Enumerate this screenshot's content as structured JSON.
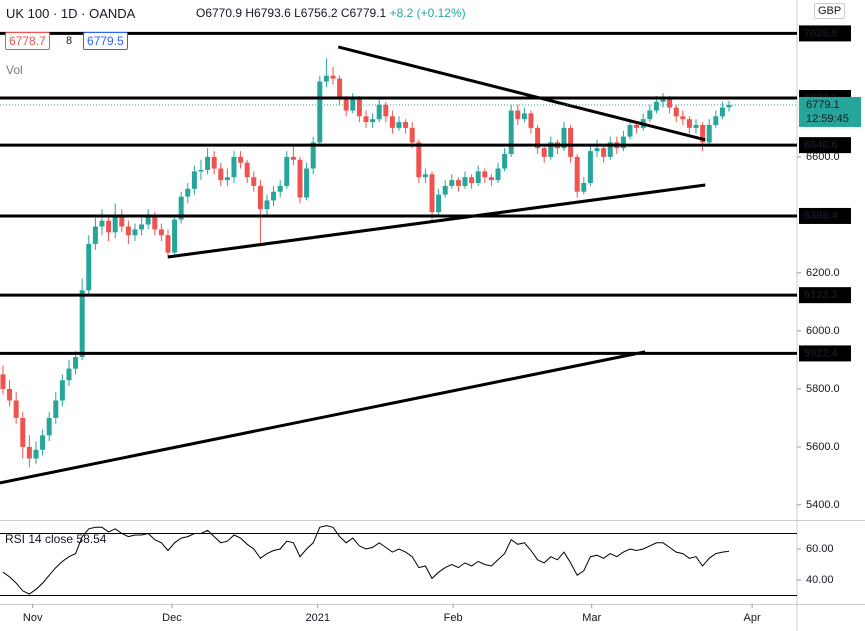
{
  "chart_data": {
    "type": "candlestick",
    "title": "UK 100 · 1D · OANDA",
    "ohlc_labels": [
      "O6770.9",
      "H6793.6",
      "L6756.2",
      "C6779.1"
    ],
    "change": "+8.2 (+0.12%)",
    "sell": "6778.7",
    "spread": "8",
    "buy": "6779.5",
    "volume_label": "Vol",
    "currency": "GBP",
    "last_price": 6779.1,
    "countdown": "12:59:45",
    "up_color": "#26a69a",
    "down_color": "#ef5350",
    "xlim": [
      -0.45,
      120.3
    ],
    "xticks": [
      {
        "value": 4.5,
        "label": "Nov"
      },
      {
        "value": 25.6,
        "label": "Dec"
      },
      {
        "value": 47.7,
        "label": "2021"
      },
      {
        "value": 68.2,
        "label": "Feb"
      },
      {
        "value": 89.2,
        "label": "Mar"
      },
      {
        "value": 113.5,
        "label": "Apr"
      }
    ],
    "ylim": [
      5348,
      7141
    ],
    "yticks": [
      {
        "value": 5400,
        "label": "5400.0"
      },
      {
        "value": 5600,
        "label": "5600.0"
      },
      {
        "value": 5800,
        "label": "5800.0"
      },
      {
        "value": 6000,
        "label": "6000.0"
      },
      {
        "value": 6200,
        "label": "6200.0"
      },
      {
        "value": 6600,
        "label": "6600.0"
      }
    ],
    "levels": [
      7025.8,
      6803.1,
      6640.6,
      6396.4,
      6123.3,
      5922.4
    ],
    "trendlines": [
      {
        "x": [
          50.8,
          106.4
        ],
        "y": [
          6979,
          6659
        ]
      },
      {
        "x": [
          25,
          106.4
        ],
        "y": [
          6255,
          6503
        ]
      },
      {
        "x": [
          -0.45,
          97.3
        ],
        "y": [
          5476,
          5928
        ]
      }
    ],
    "candles": [
      [
        5850,
        5880,
        5780,
        5800
      ],
      [
        5800,
        5830,
        5740,
        5760
      ],
      [
        5760,
        5790,
        5680,
        5700
      ],
      [
        5700,
        5720,
        5560,
        5600
      ],
      [
        5600,
        5640,
        5530,
        5560
      ],
      [
        5560,
        5620,
        5540,
        5590
      ],
      [
        5590,
        5660,
        5570,
        5640
      ],
      [
        5640,
        5720,
        5620,
        5700
      ],
      [
        5700,
        5790,
        5680,
        5760
      ],
      [
        5760,
        5850,
        5740,
        5830
      ],
      [
        5830,
        5900,
        5810,
        5870
      ],
      [
        5870,
        5930,
        5850,
        5910
      ],
      [
        5910,
        6180,
        5900,
        6140
      ],
      [
        6140,
        6330,
        6120,
        6300
      ],
      [
        6300,
        6390,
        6280,
        6360
      ],
      [
        6360,
        6420,
        6330,
        6380
      ],
      [
        6380,
        6400,
        6310,
        6340
      ],
      [
        6340,
        6440,
        6320,
        6400
      ],
      [
        6400,
        6420,
        6340,
        6360
      ],
      [
        6360,
        6380,
        6300,
        6330
      ],
      [
        6330,
        6370,
        6310,
        6350
      ],
      [
        6350,
        6390,
        6330,
        6367
      ],
      [
        6367,
        6420,
        6350,
        6400
      ],
      [
        6400,
        6410,
        6330,
        6350
      ],
      [
        6350,
        6370,
        6310,
        6330
      ],
      [
        6330,
        6350,
        6250,
        6270
      ],
      [
        6270,
        6400,
        6260,
        6384
      ],
      [
        6384,
        6480,
        6370,
        6463
      ],
      [
        6463,
        6510,
        6440,
        6490
      ],
      [
        6490,
        6570,
        6470,
        6550
      ],
      [
        6550,
        6590,
        6520,
        6555
      ],
      [
        6555,
        6630,
        6540,
        6600
      ],
      [
        6600,
        6620,
        6540,
        6560
      ],
      [
        6560,
        6580,
        6500,
        6520
      ],
      [
        6520,
        6560,
        6500,
        6530
      ],
      [
        6530,
        6620,
        6510,
        6600
      ],
      [
        6600,
        6620,
        6560,
        6580
      ],
      [
        6580,
        6590,
        6510,
        6530
      ],
      [
        6530,
        6550,
        6480,
        6500
      ],
      [
        6500,
        6520,
        6300,
        6420
      ],
      [
        6420,
        6470,
        6400,
        6450
      ],
      [
        6450,
        6500,
        6430,
        6480
      ],
      [
        6480,
        6520,
        6460,
        6500
      ],
      [
        6500,
        6620,
        6490,
        6600
      ],
      [
        6600,
        6640,
        6570,
        6590
      ],
      [
        6590,
        6600,
        6440,
        6460
      ],
      [
        6460,
        6580,
        6450,
        6560
      ],
      [
        6560,
        6670,
        6540,
        6650
      ],
      [
        6650,
        6880,
        6640,
        6860
      ],
      [
        6860,
        6940,
        6840,
        6880
      ],
      [
        6880,
        6910,
        6850,
        6870
      ],
      [
        6870,
        6880,
        6780,
        6798
      ],
      [
        6798,
        6810,
        6740,
        6760
      ],
      [
        6760,
        6820,
        6750,
        6800
      ],
      [
        6800,
        6810,
        6720,
        6740
      ],
      [
        6740,
        6760,
        6700,
        6720
      ],
      [
        6720,
        6750,
        6700,
        6730
      ],
      [
        6730,
        6800,
        6720,
        6780
      ],
      [
        6780,
        6790,
        6720,
        6740
      ],
      [
        6740,
        6760,
        6680,
        6700
      ],
      [
        6700,
        6740,
        6690,
        6720
      ],
      [
        6720,
        6730,
        6680,
        6700
      ],
      [
        6700,
        6720,
        6630,
        6650
      ],
      [
        6650,
        6660,
        6510,
        6530
      ],
      [
        6530,
        6560,
        6510,
        6540
      ],
      [
        6540,
        6550,
        6380,
        6410
      ],
      [
        6410,
        6490,
        6400,
        6470
      ],
      [
        6470,
        6520,
        6460,
        6500
      ],
      [
        6500,
        6540,
        6490,
        6520
      ],
      [
        6520,
        6530,
        6480,
        6500
      ],
      [
        6500,
        6550,
        6490,
        6530
      ],
      [
        6530,
        6540,
        6490,
        6510
      ],
      [
        6510,
        6570,
        6500,
        6550
      ],
      [
        6550,
        6560,
        6510,
        6530
      ],
      [
        6530,
        6540,
        6500,
        6520
      ],
      [
        6520,
        6580,
        6510,
        6560
      ],
      [
        6560,
        6630,
        6550,
        6610
      ],
      [
        6610,
        6780,
        6600,
        6760
      ],
      [
        6760,
        6780,
        6710,
        6730
      ],
      [
        6730,
        6770,
        6720,
        6750
      ],
      [
        6750,
        6760,
        6680,
        6700
      ],
      [
        6700,
        6710,
        6610,
        6630
      ],
      [
        6630,
        6640,
        6580,
        6600
      ],
      [
        6600,
        6670,
        6590,
        6650
      ],
      [
        6650,
        6660,
        6610,
        6630
      ],
      [
        6630,
        6720,
        6620,
        6700
      ],
      [
        6700,
        6710,
        6580,
        6600
      ],
      [
        6600,
        6610,
        6460,
        6480
      ],
      [
        6480,
        6530,
        6470,
        6510
      ],
      [
        6510,
        6640,
        6500,
        6620
      ],
      [
        6620,
        6660,
        6600,
        6630
      ],
      [
        6630,
        6640,
        6580,
        6600
      ],
      [
        6600,
        6670,
        6590,
        6650
      ],
      [
        6650,
        6670,
        6610,
        6630
      ],
      [
        6630,
        6690,
        6620,
        6670
      ],
      [
        6670,
        6730,
        6660,
        6710
      ],
      [
        6710,
        6720,
        6680,
        6700
      ],
      [
        6700,
        6750,
        6690,
        6730
      ],
      [
        6730,
        6780,
        6720,
        6760
      ],
      [
        6760,
        6810,
        6750,
        6790
      ],
      [
        6790,
        6820,
        6770,
        6800
      ],
      [
        6800,
        6810,
        6750,
        6770
      ],
      [
        6770,
        6780,
        6720,
        6740
      ],
      [
        6740,
        6760,
        6710,
        6730
      ],
      [
        6730,
        6740,
        6680,
        6700
      ],
      [
        6700,
        6730,
        6680,
        6710
      ],
      [
        6710,
        6720,
        6620,
        6650
      ],
      [
        6650,
        6730,
        6640,
        6710
      ],
      [
        6710,
        6760,
        6700,
        6740
      ],
      [
        6740,
        6790,
        6730,
        6770
      ],
      [
        6770.9,
        6793.6,
        6756.2,
        6779.1
      ]
    ],
    "rsi": {
      "label": "RSI 14 close",
      "last": 58.54,
      "color": "#000000",
      "ylim": [
        27.1,
        77.4
      ],
      "yticks": [
        {
          "value": 60,
          "label": "60.00"
        },
        {
          "value": 40,
          "label": "40.00"
        }
      ],
      "bands": [
        70,
        30
      ],
      "values": [
        45,
        42,
        38,
        33,
        31,
        34,
        38,
        43,
        48,
        52,
        55,
        57,
        68,
        73,
        74,
        74,
        71,
        73,
        70,
        68,
        69,
        69,
        70,
        66,
        64,
        59,
        64,
        67,
        68,
        70,
        70,
        72,
        68,
        64,
        65,
        69,
        67,
        63,
        60,
        54,
        57,
        59,
        60,
        65,
        64,
        55,
        60,
        64,
        74,
        75,
        74,
        68,
        64,
        67,
        62,
        60,
        61,
        64,
        61,
        58,
        60,
        58,
        55,
        48,
        49,
        41,
        45,
        48,
        50,
        48,
        51,
        49,
        52,
        50,
        49,
        53,
        57,
        66,
        63,
        64,
        59,
        53,
        51,
        55,
        53,
        58,
        51,
        43,
        46,
        55,
        56,
        54,
        57,
        55,
        58,
        60,
        59,
        60,
        62,
        64,
        64,
        61,
        58,
        57,
        54,
        55,
        49,
        54,
        57,
        58,
        58.54
      ]
    }
  }
}
